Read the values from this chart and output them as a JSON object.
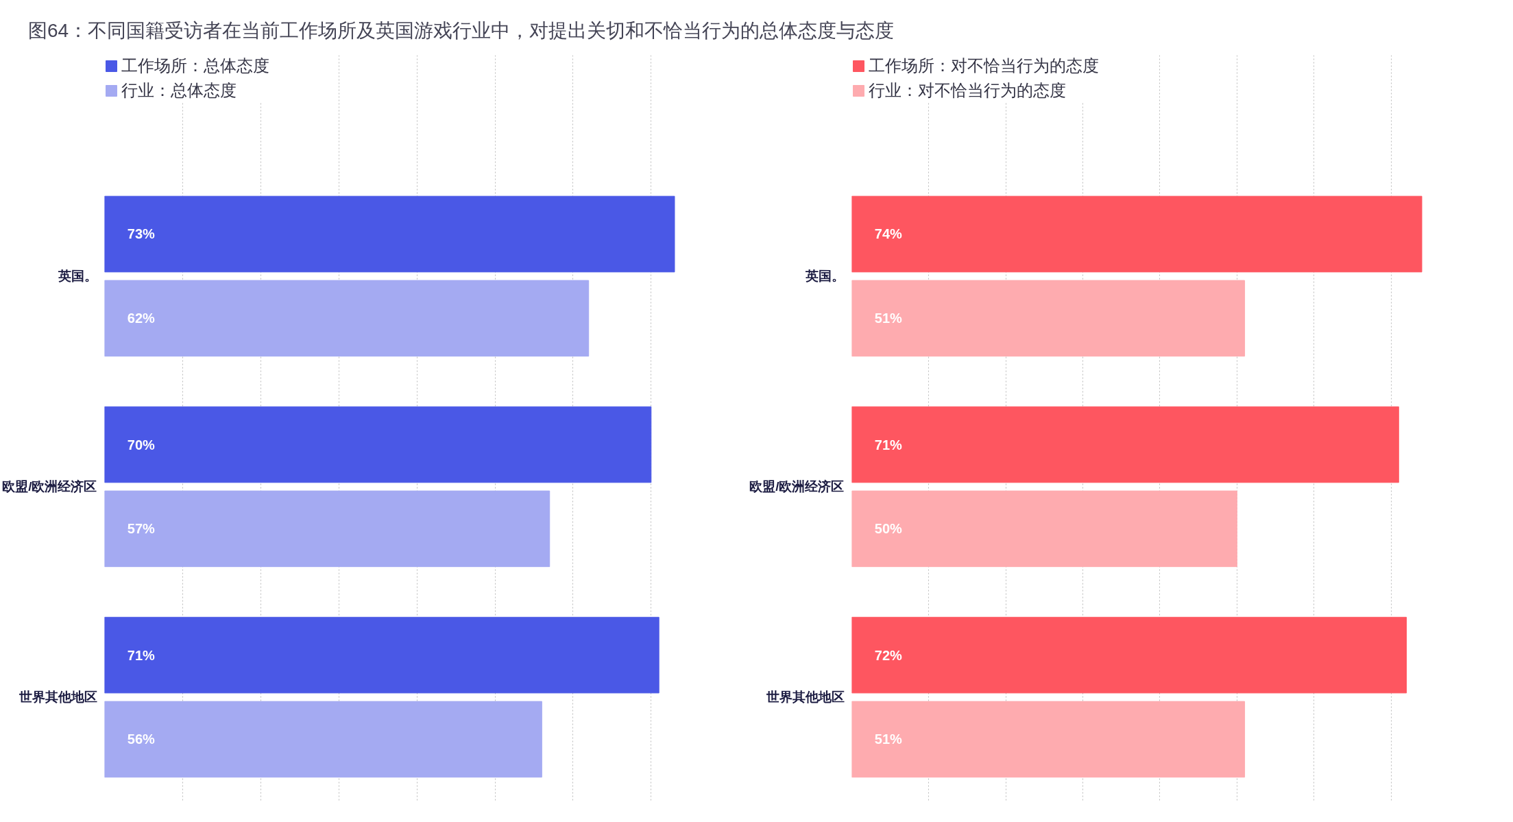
{
  "chart_data": [
    {
      "type": "bar",
      "orientation": "horizontal",
      "title": "图64：不同国籍受访者在当前工作场所及英国游戏行业中，对提出关切和不恰当行为的总体态度与态度",
      "categories": [
        "英国。",
        "欧盟/欧洲经济区",
        "世界其他地区"
      ],
      "series": [
        {
          "name": "工作场所：总体态度",
          "color": "#4a58e6",
          "values": [
            73,
            70,
            71
          ],
          "value_labels": [
            "73%",
            "70%",
            "71%"
          ]
        },
        {
          "name": "行业：总体态度",
          "color": "#a4aaf2",
          "values": [
            62,
            57,
            56
          ],
          "value_labels": [
            "62%",
            "57%",
            "56%"
          ]
        }
      ],
      "tick_labels": "y",
      "grid": "x",
      "legend": "top left"
    },
    {
      "type": "bar",
      "orientation": "horizontal",
      "categories": [
        "英国。",
        "欧盟/欧洲经济区",
        "世界其他地区"
      ],
      "series": [
        {
          "name": "工作场所：对不恰当行为的态度",
          "color": "#fe5660",
          "values": [
            74,
            71,
            72
          ],
          "value_labels": [
            "74%",
            "71%",
            "72%"
          ]
        },
        {
          "name": "行业：对不恰当行为的态度",
          "color": "#feabaf",
          "values": [
            51,
            50,
            51
          ],
          "value_labels": [
            "51%",
            "50%",
            "51%"
          ]
        }
      ],
      "tick_labels": "y",
      "grid": "x",
      "legend": "top left"
    }
  ]
}
